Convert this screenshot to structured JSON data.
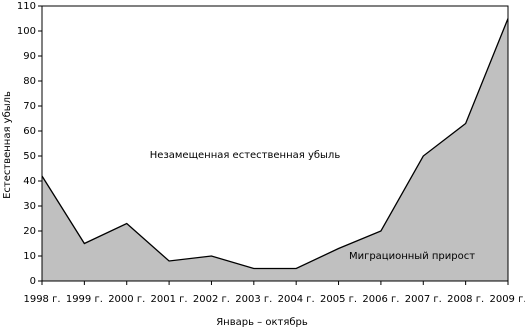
{
  "chart_data": {
    "type": "area",
    "x_label": "Январь – октябрь",
    "y_label": "Естественная убыль",
    "annotations": [
      "Незамещенная естественная убыль",
      "Миграционный прирост"
    ],
    "categories": [
      "1998 г.",
      "1999 г.",
      "2000 г.",
      "2001 г.",
      "2002 г.",
      "2003 г.",
      "2004 г.",
      "2005 г.",
      "2006 г.",
      "2007 г.",
      "2008 г.",
      "2009 г."
    ],
    "values": [
      42,
      15,
      23,
      8,
      10,
      5,
      5,
      13,
      20,
      50,
      63,
      105
    ],
    "color": "#c0c0c0",
    "ylim": [
      0,
      110
    ],
    "yticks": [
      0,
      10,
      20,
      30,
      40,
      50,
      60,
      70,
      80,
      90,
      100,
      110
    ]
  }
}
